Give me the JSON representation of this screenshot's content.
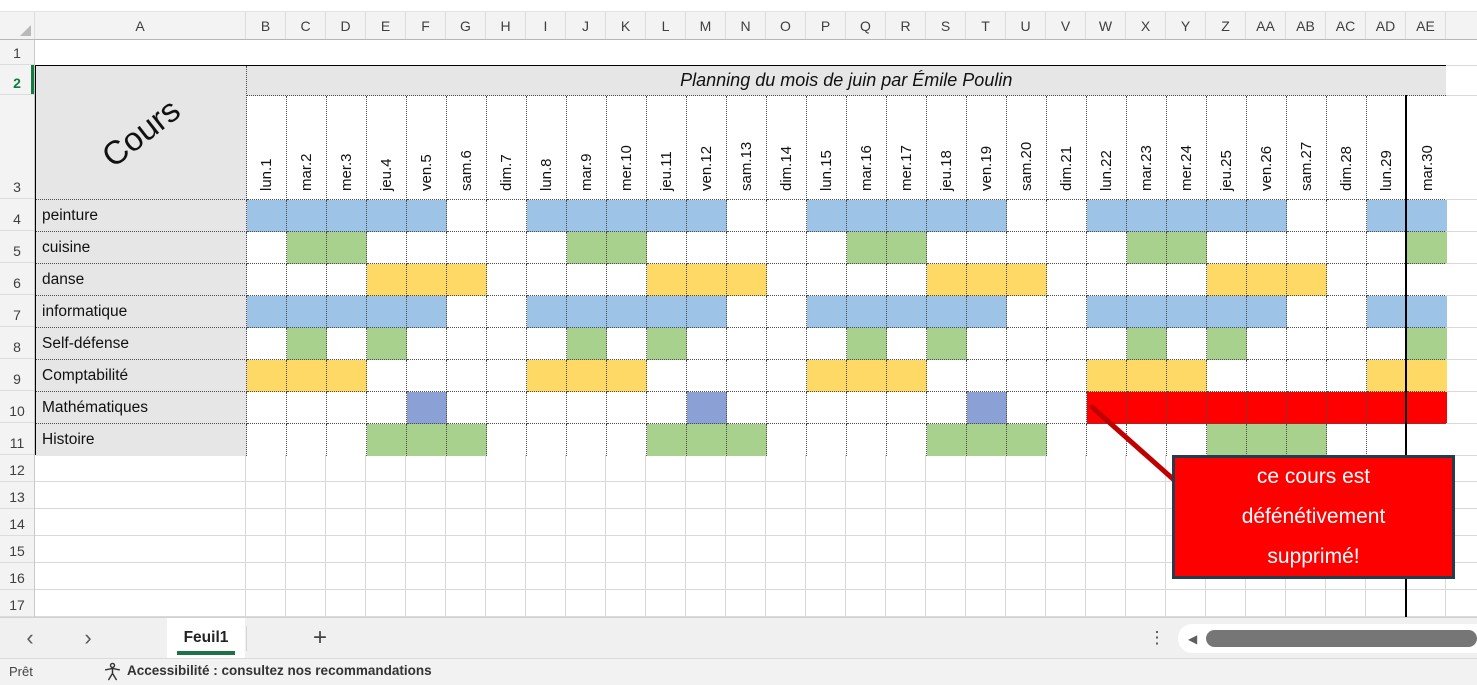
{
  "grid": {
    "col_letters": [
      "A",
      "B",
      "C",
      "D",
      "E",
      "F",
      "G",
      "H",
      "I",
      "J",
      "K",
      "L",
      "M",
      "N",
      "O",
      "P",
      "Q",
      "R",
      "S",
      "T",
      "U",
      "V",
      "W",
      "X",
      "Y",
      "Z",
      "AA",
      "AB",
      "AC",
      "AD",
      "AE"
    ],
    "row_numbers": [
      "1",
      "2",
      "3",
      "4",
      "5",
      "6",
      "7",
      "8",
      "9",
      "10",
      "11",
      "12",
      "13",
      "14",
      "15",
      "16",
      "17"
    ],
    "active_row": "2",
    "title": "Planning du mois de juin par Émile Poulin",
    "corner_label": "Cours",
    "days": [
      "lun.1",
      "mar.2",
      "mer.3",
      "jeu.4",
      "ven.5",
      "sam.6",
      "dim.7",
      "lun.8",
      "mar.9",
      "mer.10",
      "jeu.11",
      "ven.12",
      "sam.13",
      "dim.14",
      "lun.15",
      "mar.16",
      "mer.17",
      "jeu.18",
      "ven.19",
      "sam.20",
      "dim.21",
      "lun.22",
      "mar.23",
      "mer.24",
      "jeu.25",
      "ven.26",
      "sam.27",
      "dim.28",
      "lun.29",
      "mar.30"
    ],
    "colors": {
      "blue": "#9DC3E6",
      "green": "#A9D18E",
      "yellow": "#FFD966",
      "purple": "#8BA0D4",
      "red": "#FE0000"
    },
    "courses": [
      {
        "name": "peinture",
        "color": "blue",
        "days": [
          1,
          2,
          3,
          4,
          5,
          8,
          9,
          10,
          11,
          12,
          15,
          16,
          17,
          18,
          19,
          22,
          23,
          24,
          25,
          26,
          29,
          30
        ],
        "red_days": []
      },
      {
        "name": "cuisine",
        "color": "green",
        "days": [
          2,
          3,
          9,
          10,
          16,
          17,
          23,
          24,
          30
        ],
        "red_days": []
      },
      {
        "name": "danse",
        "color": "yellow",
        "days": [
          4,
          5,
          6,
          11,
          12,
          13,
          18,
          19,
          20,
          25,
          26,
          27
        ],
        "red_days": []
      },
      {
        "name": "informatique",
        "color": "blue",
        "days": [
          1,
          2,
          3,
          4,
          5,
          8,
          9,
          10,
          11,
          12,
          15,
          16,
          17,
          18,
          19,
          22,
          23,
          24,
          25,
          26,
          29,
          30
        ],
        "red_days": []
      },
      {
        "name": "Self-défense",
        "color": "green",
        "days": [
          2,
          4,
          9,
          11,
          16,
          18,
          23,
          25,
          30
        ],
        "red_days": []
      },
      {
        "name": "Comptabilité",
        "color": "yellow",
        "days": [
          1,
          2,
          3,
          8,
          9,
          10,
          15,
          16,
          17,
          22,
          23,
          24,
          29,
          30
        ],
        "red_days": []
      },
      {
        "name": "Mathématiques",
        "color": "purple",
        "days": [
          5,
          12,
          19
        ],
        "red_days": [
          22,
          23,
          24,
          25,
          26,
          27,
          28,
          29,
          30
        ]
      },
      {
        "name": "Histoire",
        "color": "green",
        "days": [
          4,
          5,
          6,
          11,
          12,
          13,
          18,
          19,
          20,
          25,
          26,
          27
        ],
        "red_days": []
      }
    ]
  },
  "annotation": {
    "lines": [
      "ce cours est",
      "défénétivement",
      "supprimé!"
    ],
    "fill": "#FE0000",
    "border_color": "#253B4E",
    "callout_color": "#BF0000"
  },
  "tabbar": {
    "prev_icon": "‹",
    "next_icon": "›",
    "sheet_name": "Feuil1",
    "add_label": "+",
    "kebab_icon": "⋮",
    "scroll_left_icon": "◀"
  },
  "statusbar": {
    "ready": "Prêt",
    "accessibility": "Accessibilité : consultez nos recommandations"
  }
}
